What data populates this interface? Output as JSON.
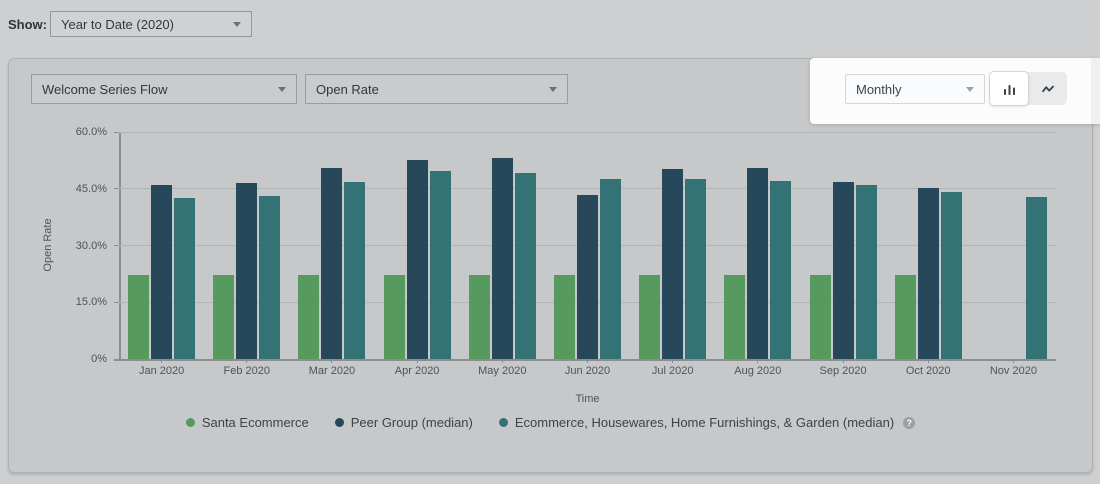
{
  "toolbar": {
    "show_label": "Show:",
    "date_range_value": "Year to Date (2020)"
  },
  "panel": {
    "flow_value": "Welcome Series Flow",
    "metric_value": "Open Rate",
    "interval_value": "Monthly",
    "chart_type_toggle": {
      "selected": "bar-chart",
      "options": [
        "bar-chart-icon",
        "line-chart-icon"
      ]
    }
  },
  "chart_data": {
    "type": "bar",
    "title": "",
    "xlabel": "Time",
    "ylabel": "Open Rate",
    "ylim": [
      0,
      60
    ],
    "grid": true,
    "yticks": [
      {
        "label": "0%",
        "value": 0
      },
      {
        "label": "15.0%",
        "value": 15
      },
      {
        "label": "30.0%",
        "value": 30
      },
      {
        "label": "45.0%",
        "value": 45
      },
      {
        "label": "60.0%",
        "value": 60
      }
    ],
    "categories": [
      "Jan 2020",
      "Feb 2020",
      "Mar 2020",
      "Apr 2020",
      "May 2020",
      "Jun 2020",
      "Jul 2020",
      "Aug 2020",
      "Sep 2020",
      "Oct 2020",
      "Nov 2020"
    ],
    "series": [
      {
        "name": "Santa Ecommerce",
        "color": "#579a5d",
        "values": [
          22.2,
          22.2,
          22.2,
          22.2,
          22.2,
          22.2,
          22.2,
          22.2,
          22.2,
          22.2,
          null
        ]
      },
      {
        "name": "Peer Group (median)",
        "color": "#27485a",
        "values": [
          46.0,
          46.6,
          50.4,
          52.5,
          53.2,
          43.4,
          50.3,
          50.6,
          46.9,
          45.3,
          null
        ]
      },
      {
        "name": "Ecommerce, Housewares, Home Furnishings, & Garden (median)",
        "color": "#357276",
        "values": [
          42.6,
          43.2,
          46.7,
          49.7,
          49.1,
          47.7,
          47.5,
          47.1,
          46.0,
          44.2,
          42.8
        ]
      }
    ],
    "legend": {
      "position": "bottom",
      "help_icon": true
    }
  },
  "colors": {
    "page_dimmed_bg": "#cdcfd0",
    "card_dimmed_bg": "#c6c8c9",
    "spotlight_bg": "#fcfcfd",
    "axis_line": "#8b8e90",
    "gridline": "#b1b4b5"
  }
}
